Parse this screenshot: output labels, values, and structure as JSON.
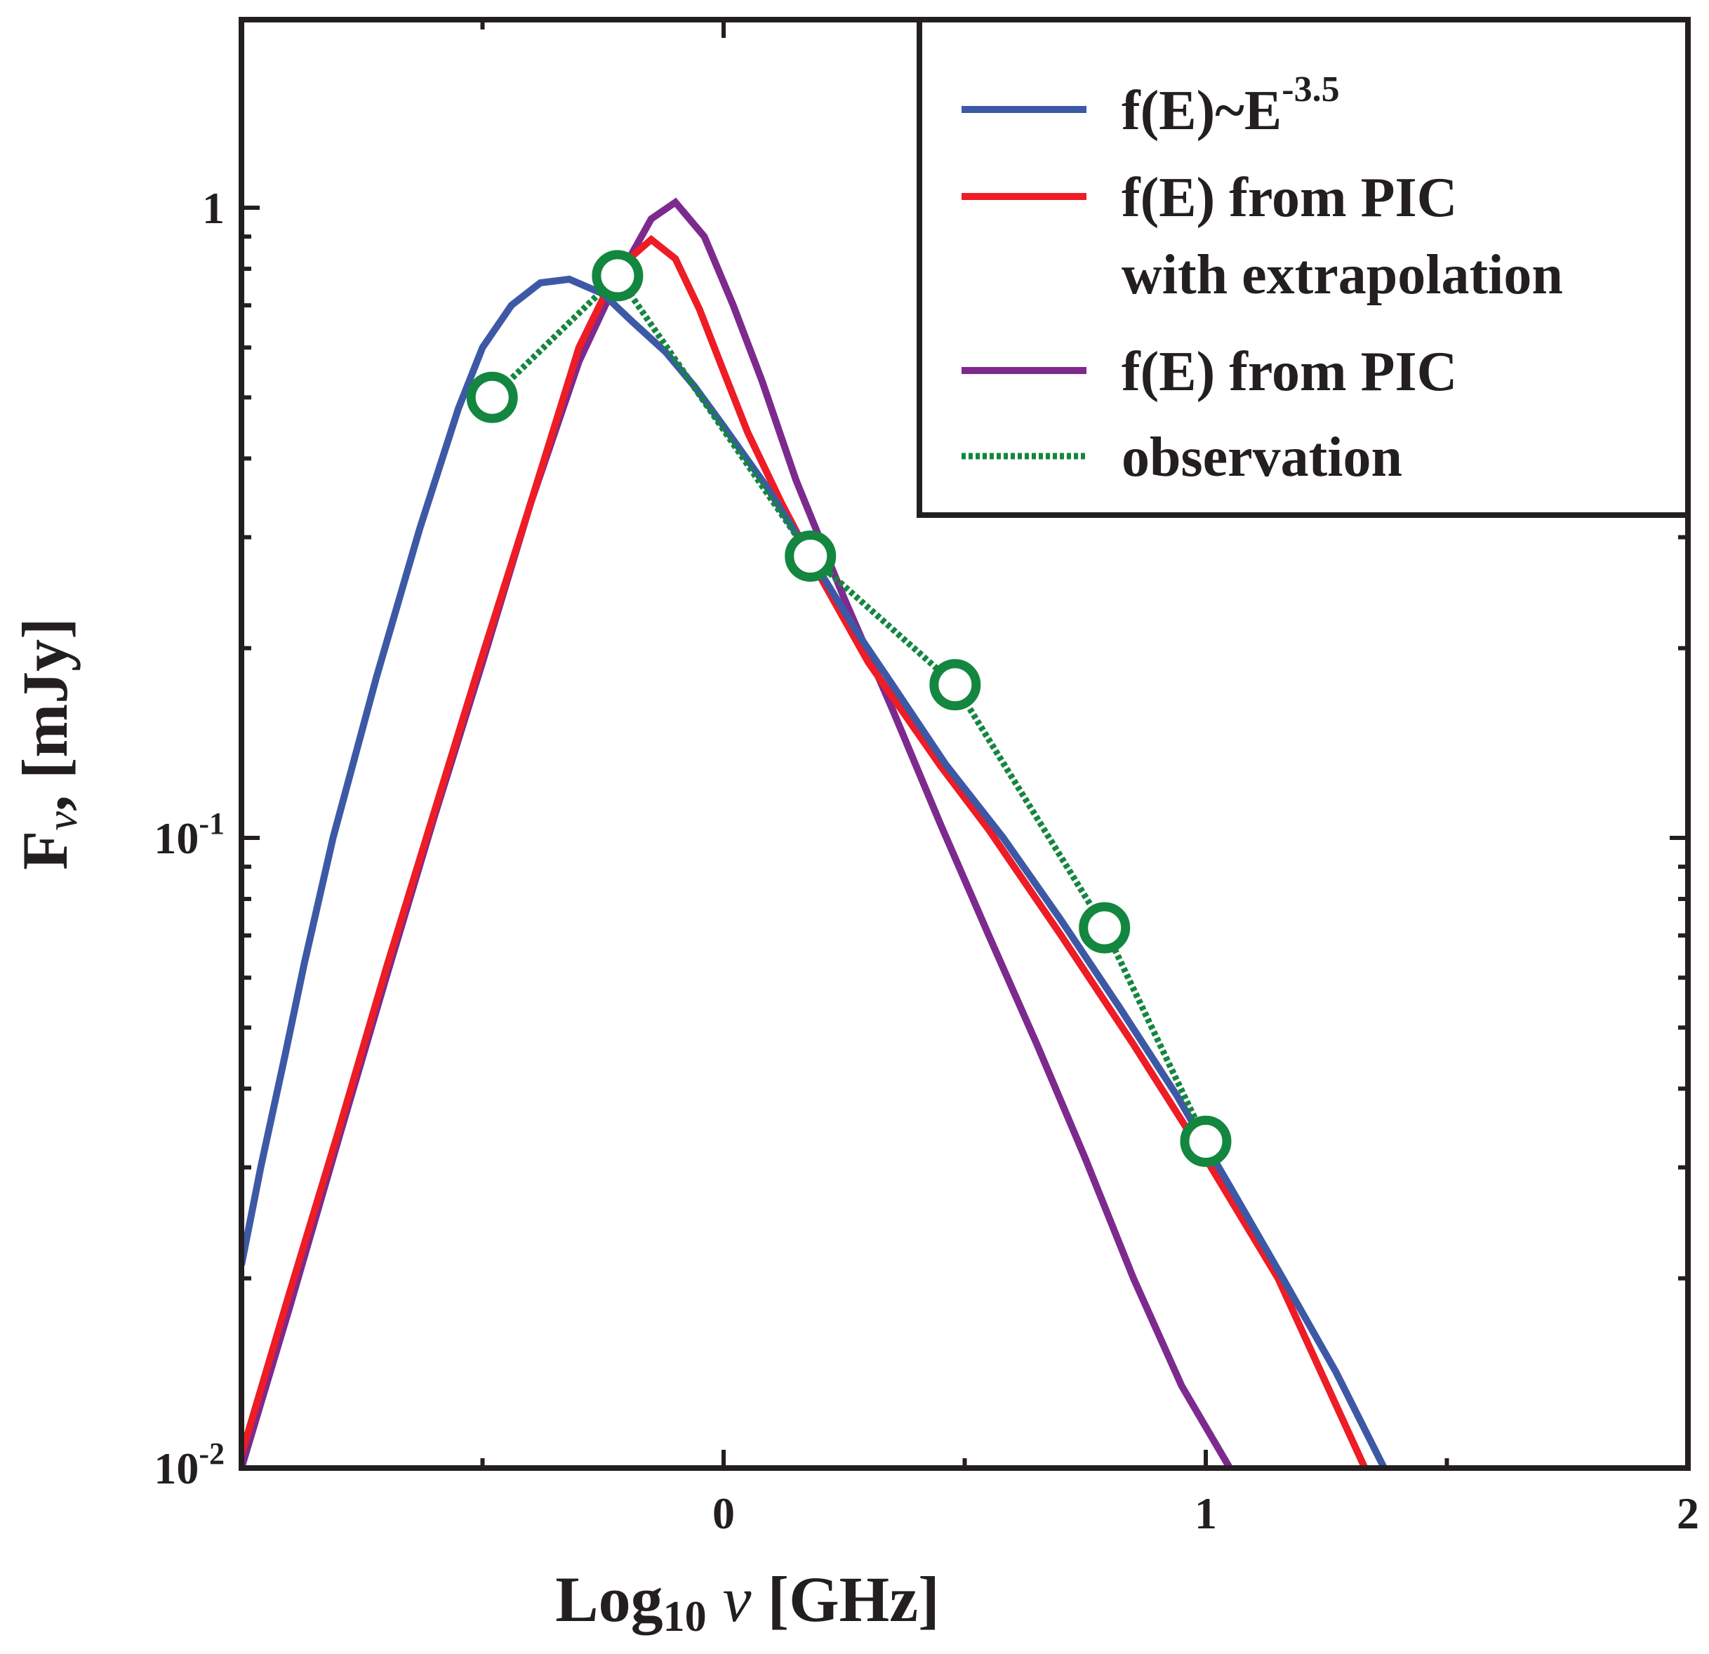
{
  "chart_data": {
    "type": "line",
    "title": "",
    "xlabel": {
      "main": "Log",
      "sub": "10",
      "symbol": "ν",
      "unit": "[GHz]"
    },
    "ylabel": {
      "main": "F",
      "sub": "ν",
      "rest": ", [mJy]"
    },
    "xlim": [
      -1,
      2
    ],
    "ylim": [
      0.01,
      2
    ],
    "yscale": "log",
    "x_ticks": [
      {
        "value": 0,
        "label": "0"
      },
      {
        "value": 1,
        "label": "1"
      },
      {
        "value": 2,
        "label": "2"
      }
    ],
    "y_ticks": [
      {
        "value": 1,
        "label": "1",
        "base": "",
        "exp": ""
      },
      {
        "value": 0.1,
        "label": "",
        "base": "10",
        "exp": "-1"
      },
      {
        "value": 0.01,
        "label": "",
        "base": "10",
        "exp": "-2"
      }
    ],
    "legend": {
      "position": "top-right"
    },
    "series": [
      {
        "name": "f(E)~E-3.5",
        "legend_main": "f(E)~E",
        "legend_sup": "-3.5",
        "color": "#3d59a6",
        "style": "solid",
        "x": [
          -1.0,
          -0.96,
          -0.91,
          -0.87,
          -0.81,
          -0.72,
          -0.63,
          -0.55,
          -0.5,
          -0.44,
          -0.38,
          -0.32,
          -0.25,
          -0.19,
          -0.12,
          -0.06,
          0.0,
          0.09,
          0.18,
          0.28,
          0.35,
          0.46,
          0.58,
          0.7,
          0.82,
          0.94,
          1.05,
          1.16,
          1.27,
          1.37
        ],
        "y": [
          0.021,
          0.03,
          0.045,
          0.063,
          0.1,
          0.18,
          0.31,
          0.48,
          0.6,
          0.7,
          0.76,
          0.77,
          0.73,
          0.66,
          0.59,
          0.52,
          0.45,
          0.36,
          0.28,
          0.21,
          0.175,
          0.131,
          0.1,
          0.074,
          0.054,
          0.039,
          0.028,
          0.02,
          0.0142,
          0.01
        ]
      },
      {
        "name": "f(E) from PIC with extrapolation",
        "legend_line1": "f(E) from PIC",
        "legend_line2": "with extrapolation",
        "color": "#ee1c25",
        "style": "solid",
        "x": [
          -1.0,
          -0.9,
          -0.8,
          -0.7,
          -0.6,
          -0.5,
          -0.4,
          -0.3,
          -0.22,
          -0.15,
          -0.1,
          -0.05,
          0.0,
          0.05,
          0.12,
          0.2,
          0.3,
          0.45,
          0.55,
          0.7,
          0.85,
          1.0,
          1.15,
          1.33
        ],
        "y": [
          0.0105,
          0.019,
          0.034,
          0.062,
          0.11,
          0.195,
          0.34,
          0.6,
          0.8,
          0.89,
          0.83,
          0.69,
          0.55,
          0.44,
          0.34,
          0.26,
          0.19,
          0.13,
          0.103,
          0.07,
          0.047,
          0.031,
          0.02,
          0.01
        ]
      },
      {
        "name": "f(E) from PIC",
        "legend_label": "f(E) from PIC",
        "color": "#7d2a8e",
        "style": "solid",
        "x": [
          -1.0,
          -0.9,
          -0.8,
          -0.7,
          -0.6,
          -0.5,
          -0.4,
          -0.3,
          -0.22,
          -0.15,
          -0.1,
          -0.04,
          0.02,
          0.08,
          0.15,
          0.25,
          0.35,
          0.45,
          0.55,
          0.65,
          0.75,
          0.85,
          0.95,
          1.05
        ],
        "y": [
          0.01,
          0.018,
          0.033,
          0.06,
          0.108,
          0.19,
          0.34,
          0.57,
          0.77,
          0.96,
          1.02,
          0.9,
          0.7,
          0.53,
          0.37,
          0.24,
          0.16,
          0.105,
          0.07,
          0.047,
          0.031,
          0.02,
          0.0135,
          0.01
        ]
      },
      {
        "name": "observation",
        "legend_label": "observation",
        "color": "#13863f",
        "style": "dotted",
        "markers": "open-circle",
        "x": [
          -0.48,
          -0.22,
          0.18,
          0.48,
          0.79,
          1.0
        ],
        "y": [
          0.5,
          0.78,
          0.28,
          0.175,
          0.072,
          0.033
        ]
      }
    ]
  }
}
